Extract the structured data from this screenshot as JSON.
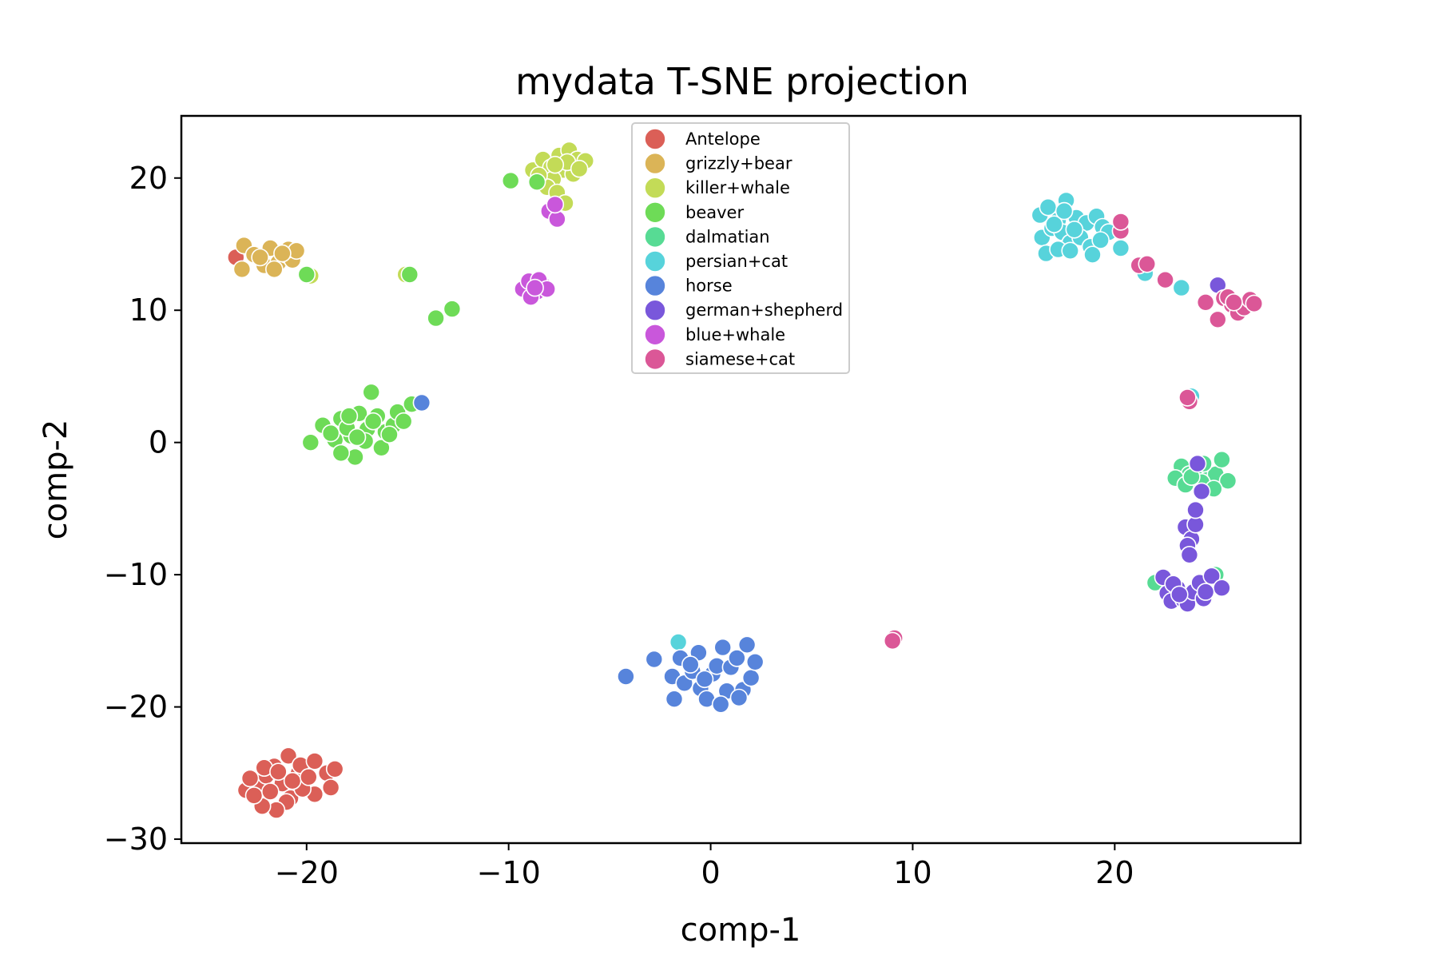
{
  "chart_data": {
    "type": "scatter",
    "title": "mydata T-SNE projection",
    "xlabel": "comp-1",
    "ylabel": "comp-2",
    "xlim": [
      -26.2,
      29.2
    ],
    "ylim": [
      -30.3,
      24.7
    ],
    "xticks": [
      -20,
      -10,
      0,
      10,
      20
    ],
    "yticks": [
      20,
      10,
      0,
      -10,
      -20,
      -30
    ],
    "xtick_labels": [
      "−20",
      "−10",
      "0",
      "10",
      "20"
    ],
    "ytick_labels": [
      "20",
      "10",
      "0",
      "−10",
      "−20",
      "−30"
    ],
    "grid": false,
    "legend_position": "top-center",
    "series": [
      {
        "name": "Antelope",
        "color": "#db5f57",
        "points": [
          [
            -23.5,
            14.0
          ],
          [
            -23.0,
            -26.3
          ],
          [
            -22.4,
            -25.9
          ],
          [
            -22.0,
            -25.2
          ],
          [
            -21.6,
            -24.5
          ],
          [
            -21.2,
            -25.8
          ],
          [
            -20.8,
            -26.9
          ],
          [
            -20.4,
            -25.0
          ],
          [
            -20.9,
            -23.7
          ],
          [
            -20.3,
            -24.4
          ],
          [
            -19.6,
            -24.1
          ],
          [
            -19.0,
            -25.0
          ],
          [
            -18.6,
            -24.7
          ],
          [
            -18.8,
            -26.1
          ],
          [
            -19.6,
            -26.6
          ],
          [
            -20.2,
            -26.2
          ],
          [
            -21.0,
            -27.2
          ],
          [
            -21.5,
            -27.8
          ],
          [
            -22.2,
            -27.5
          ],
          [
            -22.6,
            -26.7
          ],
          [
            -22.1,
            -24.6
          ],
          [
            -21.4,
            -24.9
          ],
          [
            -20.7,
            -25.6
          ],
          [
            -19.9,
            -25.3
          ],
          [
            -21.8,
            -26.4
          ],
          [
            -22.8,
            -25.4
          ]
        ]
      },
      {
        "name": "grizzly+bear",
        "color": "#dbb457",
        "points": [
          [
            -23.2,
            13.1
          ],
          [
            -23.1,
            14.9
          ],
          [
            -22.6,
            14.2
          ],
          [
            -22.1,
            13.4
          ],
          [
            -21.8,
            14.7
          ],
          [
            -21.4,
            13.6
          ],
          [
            -21.0,
            14.2
          ],
          [
            -20.7,
            13.8
          ],
          [
            -20.9,
            14.6
          ],
          [
            -21.6,
            13.1
          ],
          [
            -22.3,
            14.0
          ],
          [
            -20.5,
            14.5
          ],
          [
            -21.2,
            14.3
          ]
        ]
      },
      {
        "name": "killer+whale",
        "color": "#c3db57",
        "points": [
          [
            -19.8,
            12.6
          ],
          [
            -15.1,
            12.7
          ],
          [
            -8.8,
            20.6
          ],
          [
            -8.3,
            21.4
          ],
          [
            -7.9,
            20.8
          ],
          [
            -7.5,
            21.7
          ],
          [
            -7.0,
            22.1
          ],
          [
            -6.6,
            21.4
          ],
          [
            -6.2,
            21.3
          ],
          [
            -7.3,
            20.6
          ],
          [
            -7.8,
            19.9
          ],
          [
            -8.1,
            19.3
          ],
          [
            -7.6,
            18.9
          ],
          [
            -7.2,
            18.1
          ],
          [
            -6.8,
            20.3
          ],
          [
            -7.1,
            21.2
          ],
          [
            -6.5,
            20.7
          ],
          [
            -8.5,
            20.2
          ],
          [
            -7.7,
            21.0
          ]
        ]
      },
      {
        "name": "beaver",
        "color": "#6edb57",
        "points": [
          [
            -20.0,
            12.7
          ],
          [
            -14.9,
            12.7
          ],
          [
            -13.6,
            9.4
          ],
          [
            -12.8,
            10.1
          ],
          [
            -9.9,
            19.8
          ],
          [
            -8.6,
            19.7
          ],
          [
            -19.8,
            0.0
          ],
          [
            -19.2,
            1.3
          ],
          [
            -18.6,
            0.2
          ],
          [
            -18.3,
            1.8
          ],
          [
            -17.8,
            0.5
          ],
          [
            -17.4,
            2.2
          ],
          [
            -17.0,
            1.0
          ],
          [
            -16.8,
            3.8
          ],
          [
            -16.5,
            2.0
          ],
          [
            -16.1,
            0.8
          ],
          [
            -15.7,
            1.3
          ],
          [
            -15.5,
            2.3
          ],
          [
            -15.2,
            1.6
          ],
          [
            -14.8,
            2.9
          ],
          [
            -17.6,
            -1.1
          ],
          [
            -18.3,
            -0.8
          ],
          [
            -17.1,
            0.1
          ],
          [
            -16.3,
            -0.4
          ],
          [
            -18.0,
            1.1
          ],
          [
            -17.5,
            0.4
          ],
          [
            -16.7,
            1.6
          ],
          [
            -15.9,
            0.6
          ],
          [
            -18.8,
            0.7
          ],
          [
            -17.9,
            2.0
          ]
        ]
      },
      {
        "name": "dalmatian",
        "color": "#57db94",
        "points": [
          [
            23.3,
            -1.8
          ],
          [
            23.7,
            -2.4
          ],
          [
            24.1,
            -2.1
          ],
          [
            24.6,
            -2.8
          ],
          [
            25.0,
            -2.4
          ],
          [
            25.3,
            -1.3
          ],
          [
            25.6,
            -2.9
          ],
          [
            23.0,
            -2.7
          ],
          [
            23.5,
            -3.2
          ],
          [
            24.3,
            -3.0
          ],
          [
            24.9,
            -3.5
          ],
          [
            24.4,
            -1.6
          ],
          [
            25.0,
            -10.0
          ],
          [
            22.0,
            -10.6
          ],
          [
            23.8,
            -2.6
          ]
        ]
      },
      {
        "name": "persian+cat",
        "color": "#57d3db",
        "points": [
          [
            16.3,
            17.2
          ],
          [
            16.7,
            17.8
          ],
          [
            17.2,
            16.8
          ],
          [
            17.6,
            18.3
          ],
          [
            18.1,
            17.0
          ],
          [
            18.6,
            16.6
          ],
          [
            19.1,
            17.1
          ],
          [
            19.4,
            16.3
          ],
          [
            19.7,
            15.9
          ],
          [
            16.4,
            15.5
          ],
          [
            16.9,
            16.2
          ],
          [
            17.4,
            15.9
          ],
          [
            17.8,
            15.1
          ],
          [
            18.3,
            15.5
          ],
          [
            18.8,
            14.8
          ],
          [
            19.3,
            15.3
          ],
          [
            16.6,
            14.3
          ],
          [
            17.2,
            14.6
          ],
          [
            17.8,
            14.5
          ],
          [
            18.9,
            14.2
          ],
          [
            20.3,
            14.7
          ],
          [
            21.5,
            12.8
          ],
          [
            23.3,
            11.7
          ],
          [
            23.8,
            3.5
          ],
          [
            -1.6,
            -15.1
          ],
          [
            17.0,
            16.5
          ],
          [
            18.0,
            16.1
          ],
          [
            17.5,
            17.5
          ]
        ]
      },
      {
        "name": "horse",
        "color": "#5784db",
        "points": [
          [
            -14.3,
            3.0
          ],
          [
            -4.2,
            -17.7
          ],
          [
            -2.8,
            -16.4
          ],
          [
            -1.9,
            -17.7
          ],
          [
            -1.8,
            -19.4
          ],
          [
            -1.5,
            -16.3
          ],
          [
            -1.3,
            -18.2
          ],
          [
            -0.9,
            -17.3
          ],
          [
            -0.6,
            -15.9
          ],
          [
            -0.5,
            -18.6
          ],
          [
            -0.2,
            -19.4
          ],
          [
            0.1,
            -17.5
          ],
          [
            0.3,
            -16.9
          ],
          [
            0.6,
            -15.5
          ],
          [
            0.8,
            -18.8
          ],
          [
            1.0,
            -17.0
          ],
          [
            1.3,
            -16.3
          ],
          [
            1.6,
            -18.7
          ],
          [
            1.8,
            -15.3
          ],
          [
            2.0,
            -17.8
          ],
          [
            2.2,
            -16.6
          ],
          [
            -0.3,
            -17.9
          ],
          [
            0.5,
            -19.8
          ],
          [
            1.4,
            -19.3
          ],
          [
            -1.0,
            -16.8
          ]
        ]
      },
      {
        "name": "german+shepherd",
        "color": "#7957db",
        "points": [
          [
            22.4,
            -10.2
          ],
          [
            22.6,
            -11.4
          ],
          [
            22.8,
            -12.0
          ],
          [
            23.1,
            -11.0
          ],
          [
            23.4,
            -11.9
          ],
          [
            23.6,
            -12.2
          ],
          [
            23.9,
            -11.3
          ],
          [
            24.2,
            -10.6
          ],
          [
            24.4,
            -11.8
          ],
          [
            24.8,
            -10.1
          ],
          [
            25.3,
            -11.0
          ],
          [
            22.9,
            -10.7
          ],
          [
            23.5,
            -6.4
          ],
          [
            23.8,
            -7.3
          ],
          [
            24.0,
            -6.2
          ],
          [
            23.6,
            -7.8
          ],
          [
            23.7,
            -8.5
          ],
          [
            24.0,
            -5.1
          ],
          [
            24.3,
            -3.7
          ],
          [
            24.1,
            -1.6
          ],
          [
            25.1,
            11.9
          ],
          [
            23.2,
            -11.5
          ],
          [
            24.5,
            -11.3
          ]
        ]
      },
      {
        "name": "blue+whale",
        "color": "#c957db",
        "points": [
          [
            -9.3,
            11.6
          ],
          [
            -9.0,
            12.2
          ],
          [
            -8.6,
            11.4
          ],
          [
            -8.3,
            11.9
          ],
          [
            -8.9,
            11.0
          ],
          [
            -8.5,
            12.3
          ],
          [
            -8.1,
            11.6
          ],
          [
            -8.7,
            11.7
          ],
          [
            -8.0,
            17.5
          ],
          [
            -7.6,
            16.9
          ],
          [
            -7.7,
            18.0
          ]
        ]
      },
      {
        "name": "siamese+cat",
        "color": "#db5797",
        "points": [
          [
            20.3,
            16.0
          ],
          [
            20.3,
            16.7
          ],
          [
            21.2,
            13.4
          ],
          [
            21.6,
            13.5
          ],
          [
            22.5,
            12.3
          ],
          [
            24.5,
            10.6
          ],
          [
            25.1,
            9.3
          ],
          [
            25.4,
            10.9
          ],
          [
            25.8,
            10.4
          ],
          [
            26.1,
            9.8
          ],
          [
            26.4,
            10.2
          ],
          [
            26.7,
            10.8
          ],
          [
            26.9,
            10.5
          ],
          [
            25.6,
            11.0
          ],
          [
            23.7,
            3.1
          ],
          [
            23.6,
            3.4
          ],
          [
            9.1,
            -14.8
          ],
          [
            9.0,
            -15.0
          ],
          [
            25.9,
            10.6
          ]
        ]
      }
    ]
  }
}
